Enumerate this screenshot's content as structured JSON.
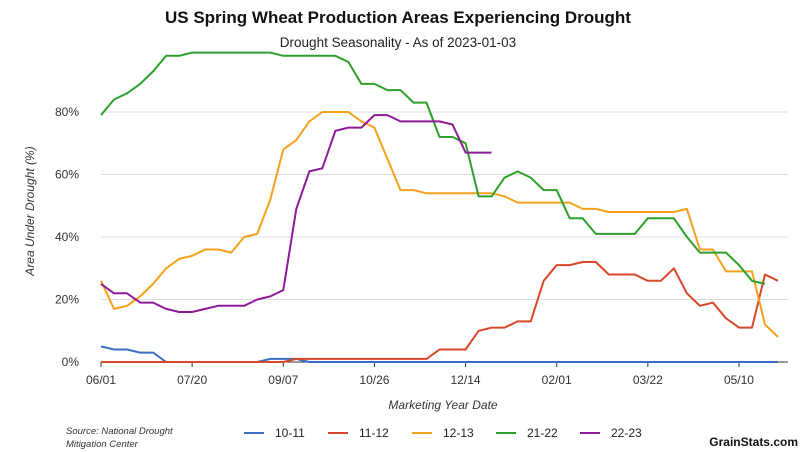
{
  "chart_data": {
    "type": "line",
    "title": "US Spring Wheat Production Areas Experiencing Drought",
    "subtitle": "Drought Seasonality - As of 2023-01-03",
    "xlabel": "Marketing Year Date",
    "ylabel": "Area Under Drought (%)",
    "ylim": [
      0,
      100
    ],
    "xlim": [
      0,
      52
    ],
    "grid": true,
    "legend_position": "bottom",
    "x_ticks": [
      {
        "week": 0,
        "label": "06/01"
      },
      {
        "week": 7,
        "label": "07/20"
      },
      {
        "week": 14,
        "label": "09/07"
      },
      {
        "week": 21,
        "label": "10/26"
      },
      {
        "week": 28,
        "label": "12/14"
      },
      {
        "week": 35,
        "label": "02/01"
      },
      {
        "week": 42,
        "label": "03/22"
      },
      {
        "week": 49,
        "label": "05/10"
      }
    ],
    "y_ticks": [
      {
        "value": 0,
        "label": "0%"
      },
      {
        "value": 20,
        "label": "20%"
      },
      {
        "value": 40,
        "label": "40%"
      },
      {
        "value": 60,
        "label": "60%"
      },
      {
        "value": 80,
        "label": "80%"
      }
    ],
    "series": [
      {
        "name": "10-11",
        "color": "#3a6fc4",
        "values": [
          5,
          4,
          4,
          3,
          3,
          0,
          0,
          0,
          0,
          0,
          0,
          0,
          0,
          1,
          1,
          1,
          0,
          0,
          0,
          0,
          0,
          0,
          0,
          0,
          0,
          0,
          0,
          0,
          0,
          0,
          0,
          0,
          0,
          0,
          0,
          0,
          0,
          0,
          0,
          0,
          0,
          0,
          0,
          0,
          0,
          0,
          0,
          0,
          0,
          0,
          0,
          0,
          0
        ]
      },
      {
        "name": "11-12",
        "color": "#d9472b",
        "values": [
          0,
          0,
          0,
          0,
          0,
          0,
          0,
          0,
          0,
          0,
          0,
          0,
          0,
          0,
          0,
          1,
          1,
          1,
          1,
          1,
          1,
          1,
          1,
          1,
          1,
          1,
          4,
          4,
          4,
          10,
          11,
          11,
          13,
          13,
          26,
          31,
          31,
          32,
          32,
          28,
          28,
          28,
          26,
          26,
          30,
          22,
          18,
          19,
          14,
          11,
          11,
          28,
          26
        ]
      },
      {
        "name": "12-13",
        "color": "#f5a11c",
        "values": [
          26,
          17,
          18,
          21,
          25,
          30,
          33,
          34,
          36,
          36,
          35,
          40,
          41,
          52,
          68,
          71,
          77,
          80,
          80,
          80,
          77,
          75,
          65,
          55,
          55,
          54,
          54,
          54,
          54,
          54,
          54,
          53,
          51,
          51,
          51,
          51,
          51,
          49,
          49,
          48,
          48,
          48,
          48,
          48,
          48,
          49,
          36,
          36,
          29,
          29,
          29,
          12,
          8
        ]
      },
      {
        "name": "21-22",
        "color": "#2ea02c",
        "values": [
          79,
          84,
          86,
          89,
          93,
          98,
          98,
          99,
          99,
          99,
          99,
          99,
          99,
          99,
          98,
          98,
          98,
          98,
          98,
          96,
          89,
          89,
          87,
          87,
          83,
          83,
          72,
          72,
          70,
          53,
          53,
          59,
          61,
          59,
          55,
          55,
          46,
          46,
          41,
          41,
          41,
          41,
          46,
          46,
          46,
          40,
          35,
          35,
          35,
          31,
          26,
          25
        ]
      },
      {
        "name": "22-23",
        "color": "#8e1a96",
        "values": [
          25,
          22,
          22,
          19,
          19,
          17,
          16,
          16,
          17,
          18,
          18,
          18,
          20,
          21,
          23,
          49,
          61,
          62,
          74,
          75,
          75,
          79,
          79,
          77,
          77,
          77,
          77,
          76,
          67,
          67,
          67
        ]
      }
    ]
  },
  "footer": {
    "source_line1": "Source: National Drought",
    "source_line2": "Mitigation Center",
    "brand": "GrainStats.com"
  }
}
